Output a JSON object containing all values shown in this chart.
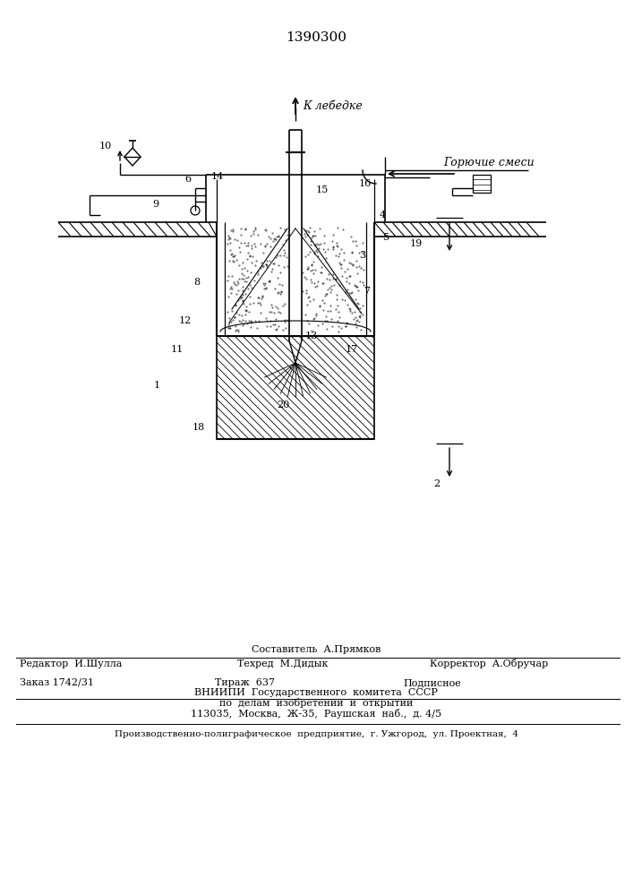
{
  "title": "1390300",
  "bg_color": "#ffffff",
  "label_к_лебедке": "К лебедке",
  "label_горючие_смеси": "Горючие смеси",
  "footer_line1": "Составитель  А.Прямков",
  "footer_line2_left": "Редактор  И.Шулла",
  "footer_line2_mid": "Техред  М.Дидык",
  "footer_line2_right": "Корректор  А.Обручар",
  "footer_line3_left": "Заказ 1742/31",
  "footer_line3_mid": "Тираж  637",
  "footer_line3_right": "Подписное",
  "footer_line4": "ВНИИПИ  Государственного  комитета  СССР",
  "footer_line5": "по  делам  изобретений  и  открытий",
  "footer_line6": "113035,  Москва,  Ж-35,  Раушская  наб.,  д. 4/5",
  "footer_last": "Производственно-полиграфическое  предприятие,  г. Ужгород,  ул. Проектная,  4"
}
